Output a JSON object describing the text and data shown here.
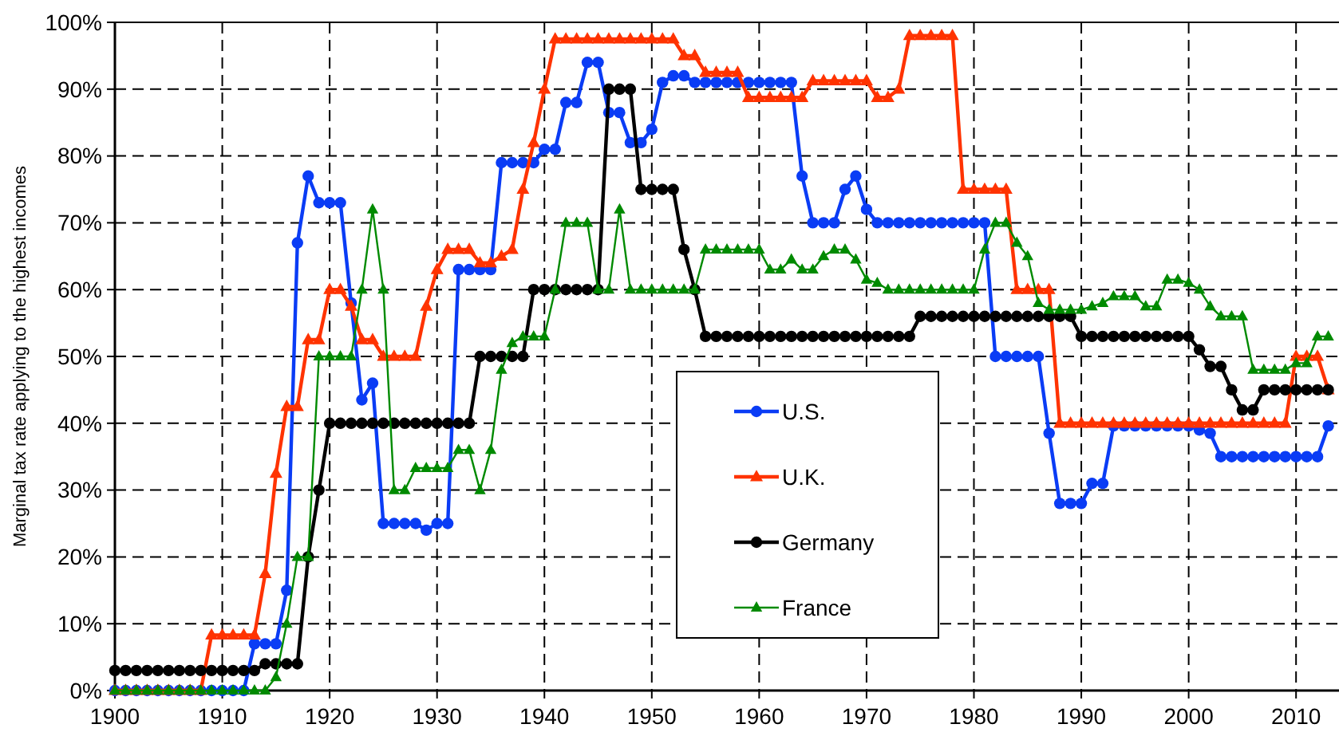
{
  "chart_data": {
    "type": "line",
    "ylabel": "Marginal tax rate applying to the highest incomes",
    "x": [
      1900,
      1901,
      1902,
      1903,
      1904,
      1905,
      1906,
      1907,
      1908,
      1909,
      1910,
      1911,
      1912,
      1913,
      1914,
      1915,
      1916,
      1917,
      1918,
      1919,
      1920,
      1921,
      1922,
      1923,
      1924,
      1925,
      1926,
      1927,
      1928,
      1929,
      1930,
      1931,
      1932,
      1933,
      1934,
      1935,
      1936,
      1937,
      1938,
      1939,
      1940,
      1941,
      1942,
      1943,
      1944,
      1945,
      1946,
      1947,
      1948,
      1949,
      1950,
      1951,
      1952,
      1953,
      1954,
      1955,
      1956,
      1957,
      1958,
      1959,
      1960,
      1961,
      1962,
      1963,
      1964,
      1965,
      1966,
      1967,
      1968,
      1969,
      1970,
      1971,
      1972,
      1973,
      1974,
      1975,
      1976,
      1977,
      1978,
      1979,
      1980,
      1981,
      1982,
      1983,
      1984,
      1985,
      1986,
      1987,
      1988,
      1989,
      1990,
      1991,
      1992,
      1993,
      1994,
      1995,
      1996,
      1997,
      1998,
      1999,
      2000,
      2001,
      2002,
      2003,
      2004,
      2005,
      2006,
      2007,
      2008,
      2009,
      2010,
      2011,
      2012,
      2013
    ],
    "series": [
      {
        "name": "U.S.",
        "color": "#0a3cf5",
        "marker": "circle",
        "values": [
          0,
          0,
          0,
          0,
          0,
          0,
          0,
          0,
          0,
          0,
          0,
          0,
          0,
          7,
          7,
          7,
          15,
          67,
          77,
          73,
          73,
          73,
          58,
          43.5,
          46,
          25,
          25,
          25,
          25,
          24,
          25,
          25,
          63,
          63,
          63,
          63,
          79,
          79,
          79,
          79,
          81,
          81,
          88,
          88,
          94,
          94,
          86.5,
          86.5,
          82,
          82,
          84,
          91,
          92,
          92,
          91,
          91,
          91,
          91,
          91,
          91,
          91,
          91,
          91,
          91,
          77,
          70,
          70,
          70,
          75,
          77,
          72,
          70,
          70,
          70,
          70,
          70,
          70,
          70,
          70,
          70,
          70,
          70,
          50,
          50,
          50,
          50,
          50,
          38.5,
          28,
          28,
          28,
          31,
          31,
          39.6,
          39.6,
          39.6,
          39.6,
          39.6,
          39.6,
          39.6,
          39.6,
          39,
          38.5,
          35,
          35,
          35,
          35,
          35,
          35,
          35,
          35,
          35,
          35,
          39.6
        ]
      },
      {
        "name": "U.K.",
        "color": "#ff3300",
        "marker": "triangle",
        "values": [
          0,
          0,
          0,
          0,
          0,
          0,
          0,
          0,
          0,
          8.3,
          8.3,
          8.3,
          8.3,
          8.3,
          17.5,
          32.5,
          42.5,
          42.5,
          52.5,
          52.5,
          60,
          60,
          57.5,
          52.5,
          52.5,
          50,
          50,
          50,
          50,
          57.5,
          63,
          66,
          66,
          66,
          64,
          64,
          65,
          66,
          75,
          82,
          90,
          97.5,
          97.5,
          97.5,
          97.5,
          97.5,
          97.5,
          97.5,
          97.5,
          97.5,
          97.5,
          97.5,
          97.5,
          95,
          95,
          92.5,
          92.5,
          92.5,
          92.5,
          88.75,
          88.75,
          88.75,
          88.75,
          88.75,
          88.75,
          91.25,
          91.25,
          91.25,
          91.25,
          91.25,
          91.25,
          88.75,
          88.75,
          90,
          98,
          98,
          98,
          98,
          98,
          75,
          75,
          75,
          75,
          75,
          60,
          60,
          60,
          60,
          40,
          40,
          40,
          40,
          40,
          40,
          40,
          40,
          40,
          40,
          40,
          40,
          40,
          40,
          40,
          40,
          40,
          40,
          40,
          40,
          40,
          40,
          50,
          50,
          50,
          45
        ]
      },
      {
        "name": "Germany",
        "color": "#000000",
        "marker": "circle",
        "values": [
          3,
          3,
          3,
          3,
          3,
          3,
          3,
          3,
          3,
          3,
          3,
          3,
          3,
          3,
          4,
          4,
          4,
          4,
          20,
          30,
          40,
          40,
          40,
          40,
          40,
          40,
          40,
          40,
          40,
          40,
          40,
          40,
          40,
          40,
          50,
          50,
          50,
          50,
          50,
          60,
          60,
          60,
          60,
          60,
          60,
          60,
          90,
          90,
          90,
          75,
          75,
          75,
          75,
          66,
          60,
          53,
          53,
          53,
          53,
          53,
          53,
          53,
          53,
          53,
          53,
          53,
          53,
          53,
          53,
          53,
          53,
          53,
          53,
          53,
          53,
          56,
          56,
          56,
          56,
          56,
          56,
          56,
          56,
          56,
          56,
          56,
          56,
          56,
          56,
          56,
          53,
          53,
          53,
          53,
          53,
          53,
          53,
          53,
          53,
          53,
          53,
          51,
          48.5,
          48.5,
          45,
          42,
          42,
          45,
          45,
          45,
          45,
          45,
          45,
          45
        ]
      },
      {
        "name": "France",
        "color": "#008a00",
        "marker": "triangle",
        "values": [
          0,
          0,
          0,
          0,
          0,
          0,
          0,
          0,
          0,
          0,
          0,
          0,
          0,
          0,
          0,
          2,
          10,
          20,
          20,
          50,
          50,
          50,
          50,
          60,
          72,
          60,
          30,
          30,
          33.3,
          33.3,
          33.3,
          33.3,
          36,
          36,
          30,
          36,
          48,
          52,
          53,
          53,
          53,
          60,
          70,
          70,
          70,
          60,
          60,
          72,
          60,
          60,
          60,
          60,
          60,
          60,
          60,
          66,
          66,
          66,
          66,
          66,
          66,
          63,
          63,
          64.5,
          63,
          63,
          65,
          66,
          66,
          64.5,
          61.5,
          61,
          60,
          60,
          60,
          60,
          60,
          60,
          60,
          60,
          60,
          66,
          70,
          70,
          67,
          65,
          58,
          57,
          57,
          57,
          57,
          57.5,
          58,
          59,
          59,
          59,
          57.5,
          57.5,
          61.5,
          61.5,
          61,
          60,
          57.5,
          56,
          56,
          56,
          48,
          48,
          48,
          48,
          49,
          49,
          53,
          53
        ]
      }
    ],
    "xlim": [
      1900,
      2014
    ],
    "xticks": [
      1900,
      1910,
      1920,
      1930,
      1940,
      1950,
      1960,
      1970,
      1980,
      1990,
      2000,
      2010
    ],
    "ylim": [
      0,
      100
    ],
    "yticks": [
      {
        "value": 0,
        "label": "0%"
      },
      {
        "value": 10,
        "label": "10%"
      },
      {
        "value": 20,
        "label": "20%"
      },
      {
        "value": 30,
        "label": "30%"
      },
      {
        "value": 40,
        "label": "40%"
      },
      {
        "value": 50,
        "label": "50%"
      },
      {
        "value": 60,
        "label": "60%"
      },
      {
        "value": 70,
        "label": "70%"
      },
      {
        "value": 80,
        "label": "80%"
      },
      {
        "value": 90,
        "label": "90%"
      },
      {
        "value": 100,
        "label": "100%"
      }
    ],
    "grid": true,
    "legend": "bottom",
    "line_style": "solid"
  }
}
